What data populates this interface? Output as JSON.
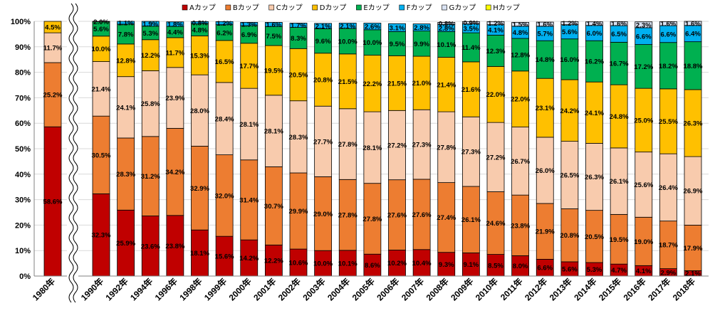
{
  "chart_data": {
    "type": "bar",
    "stacked": true,
    "percent_stacked": true,
    "title": "",
    "xlabel": "",
    "ylabel": "",
    "ylim": [
      0,
      100
    ],
    "y_ticks": [
      "0%",
      "10%",
      "20%",
      "30%",
      "40%",
      "50%",
      "60%",
      "70%",
      "80%",
      "90%",
      "100%"
    ],
    "grid": true,
    "legend_position": "top",
    "axis_break_after_index": 0,
    "categories": [
      "1980年",
      "1990年",
      "1992年",
      "1994年",
      "1996年",
      "1998年",
      "1999年",
      "2000年",
      "2001年",
      "2002年",
      "2003年",
      "2004年",
      "2005年",
      "2006年",
      "2007年",
      "2008年",
      "2009年",
      "2010年",
      "2011年",
      "2012年",
      "2013年",
      "2014年",
      "2015年",
      "2016年",
      "2017年",
      "2018年"
    ],
    "series": [
      {
        "name": "Aカップ",
        "color": "#c00000",
        "values": [
          58.6,
          32.3,
          25.9,
          23.6,
          23.8,
          18.1,
          15.6,
          14.2,
          12.2,
          10.6,
          10.0,
          10.1,
          8.6,
          10.2,
          10.4,
          9.3,
          9.1,
          8.5,
          8.0,
          6.6,
          5.6,
          5.3,
          4.7,
          4.1,
          2.9,
          2.1
        ]
      },
      {
        "name": "Bカップ",
        "color": "#ed7d31",
        "values": [
          25.2,
          30.5,
          28.3,
          31.2,
          34.2,
          32.9,
          32.0,
          31.4,
          30.7,
          29.9,
          29.0,
          27.8,
          27.8,
          27.6,
          27.6,
          27.4,
          26.1,
          24.6,
          23.8,
          21.9,
          20.8,
          20.5,
          19.5,
          19.0,
          18.7,
          17.9
        ]
      },
      {
        "name": "Cカップ",
        "color": "#f8cbad",
        "values": [
          11.7,
          21.4,
          24.1,
          25.8,
          23.9,
          28.0,
          28.4,
          28.1,
          28.1,
          28.3,
          27.7,
          27.8,
          28.1,
          27.2,
          27.3,
          27.8,
          27.3,
          27.2,
          26.7,
          26.0,
          26.5,
          26.3,
          26.1,
          25.6,
          26.4,
          26.9
        ]
      },
      {
        "name": "Dカップ",
        "color": "#ffc000",
        "values": [
          4.5,
          10.0,
          12.8,
          12.2,
          11.7,
          15.3,
          16.5,
          17.7,
          19.5,
          20.5,
          20.8,
          21.5,
          22.2,
          21.5,
          21.0,
          21.4,
          21.6,
          22.0,
          22.0,
          23.1,
          24.2,
          24.1,
          24.8,
          25.0,
          25.5,
          26.3
        ]
      },
      {
        "name": "Eカップ",
        "color": "#00b050",
        "values": [
          0,
          5.6,
          7.8,
          5.3,
          4.4,
          4.8,
          6.2,
          6.9,
          7.5,
          8.3,
          9.6,
          10.0,
          10.0,
          9.5,
          9.9,
          10.1,
          11.4,
          12.3,
          12.8,
          14.8,
          16.0,
          16.2,
          16.7,
          17.2,
          18.2,
          18.8
        ]
      },
      {
        "name": "Fカップ",
        "color": "#00b0f0",
        "values": [
          0,
          2.0,
          1.1,
          1.9,
          1.8,
          0.8,
          1.2,
          1.3,
          1.6,
          1.7,
          2.1,
          2.1,
          2.6,
          3.1,
          2.8,
          2.8,
          3.5,
          4.1,
          4.8,
          5.7,
          5.6,
          6.0,
          6.5,
          6.6,
          6.6,
          6.4
        ]
      },
      {
        "name": "Gカップ",
        "color": "#dae3f3",
        "values": [
          0,
          0,
          0,
          0,
          0,
          0,
          0,
          0,
          0,
          0,
          0,
          0,
          0,
          0,
          0,
          0.8,
          0.9,
          1.2,
          1.5,
          1.6,
          1.2,
          1.4,
          1.6,
          2.3,
          1.6,
          1.6
        ]
      },
      {
        "name": "Hカップ",
        "color": "#ffff00",
        "values": [
          0,
          0,
          0,
          0,
          0,
          0,
          0,
          0,
          0,
          0,
          0,
          0,
          0,
          0,
          0,
          0,
          0,
          0,
          0,
          0,
          0,
          0,
          0,
          0,
          0,
          0
        ]
      }
    ]
  }
}
